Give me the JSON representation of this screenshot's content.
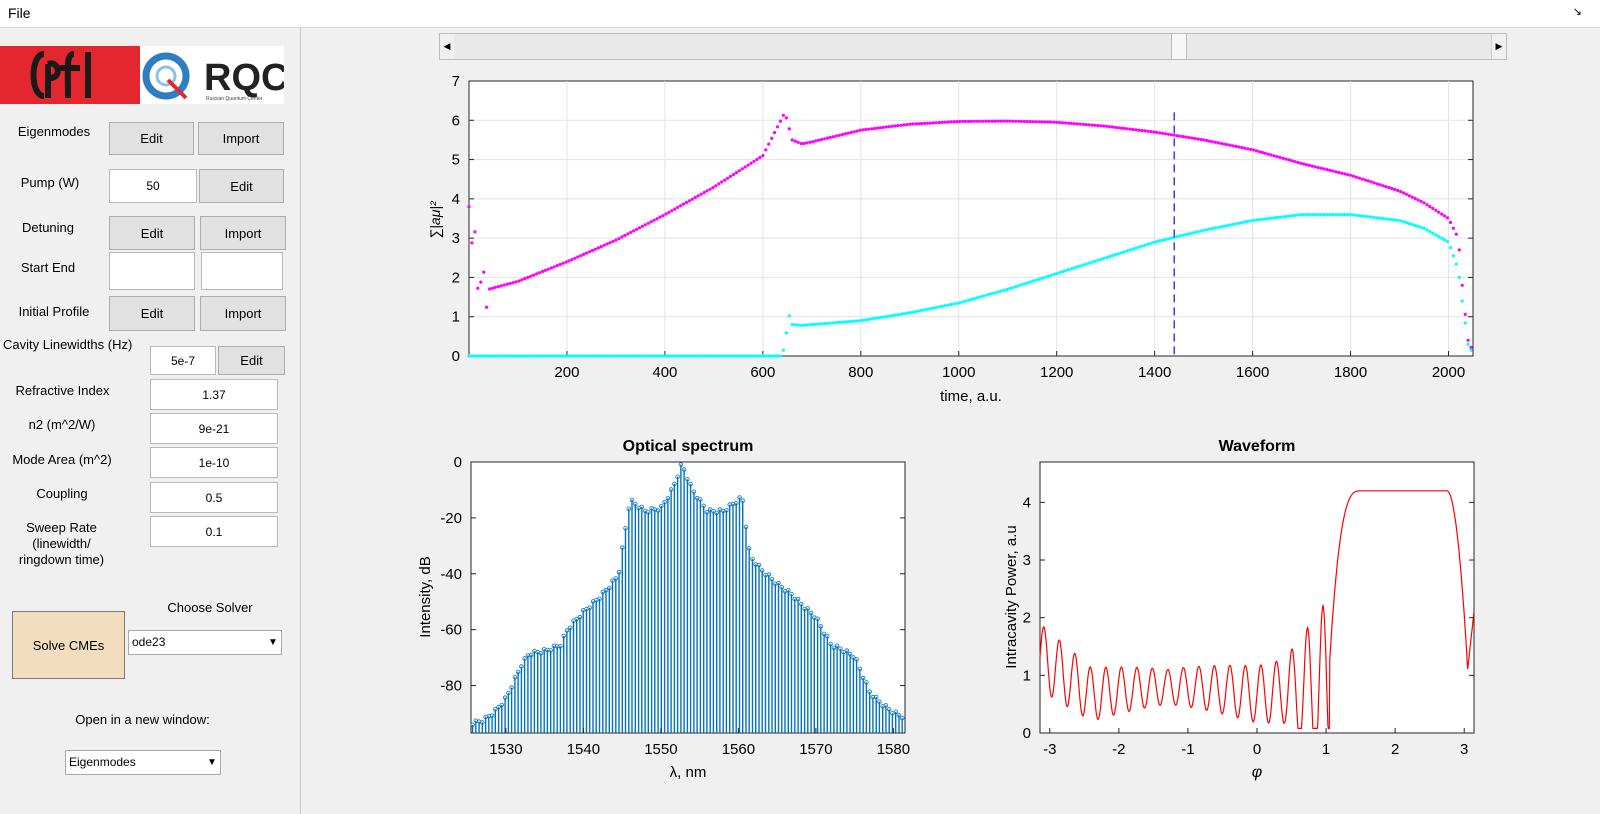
{
  "menu": {
    "file_label": "File",
    "corner_icon": "resize-arrow-icon"
  },
  "logos": {
    "epfl_text": "EPFL",
    "rqc_text": "RQC",
    "rqc_subtitle": "Russian Quantum Center"
  },
  "panel": {
    "eigenmodes_label": "Eigenmodes",
    "pump_label": "Pump (W)",
    "pump_value": "50",
    "detuning_label": "Detuning",
    "start_end_label": "Start End",
    "start_value": "",
    "end_value": "",
    "initial_profile_label": "Initial Profile",
    "cavity_label": "Cavity Linewidths (Hz)",
    "cavity_value": "5e-7",
    "refractive_label": "Refractive Index",
    "refractive_value": "1.37",
    "n2_label": "n2 (m^2/W)",
    "n2_value": "9e-21",
    "mode_area_label": "Mode Area (m^2)",
    "mode_area_value": "1e-10",
    "coupling_label": "Coupling",
    "coupling_value": "0.5",
    "sweep_label_1": "Sweep Rate",
    "sweep_label_2": "(linewidth/",
    "sweep_label_3": "ringdown time)",
    "sweep_value": "0.1",
    "edit_label": "Edit",
    "import_label": "Import",
    "choose_solver_label": "Choose Solver",
    "solver_value": "ode23",
    "solve_label": "Solve CMEs",
    "open_new_label": "Open in a new window:",
    "window_value": "Eigenmodes"
  },
  "slider": {
    "position": 0.7
  },
  "chart_data": [
    {
      "type": "scatter",
      "title": "",
      "xlabel": "time, a.u.",
      "ylabel": "∑|aμ|²",
      "xlim": [
        0,
        2050
      ],
      "ylim": [
        0,
        7
      ],
      "xticks": [
        200,
        400,
        600,
        800,
        1000,
        1200,
        1400,
        1600,
        1800,
        2000
      ],
      "yticks": [
        0,
        1,
        2,
        3,
        4,
        5,
        6,
        7
      ],
      "grid": true,
      "marker_line_x": 1440,
      "series": [
        {
          "color": "#ff00ff",
          "x": [
            0,
            20,
            40,
            100,
            200,
            300,
            400,
            500,
            600,
            645,
            660,
            680,
            700,
            750,
            800,
            900,
            1000,
            1100,
            1200,
            1300,
            1400,
            1500,
            1600,
            1700,
            1800,
            1900,
            1950,
            2000,
            2020,
            2030,
            2040,
            2050
          ],
          "y": [
            3.8,
            1.9,
            1.7,
            1.9,
            2.4,
            2.95,
            3.6,
            4.3,
            5.1,
            6.2,
            5.5,
            5.4,
            5.45,
            5.6,
            5.75,
            5.9,
            5.97,
            5.98,
            5.95,
            5.85,
            5.7,
            5.5,
            5.25,
            4.9,
            4.6,
            4.2,
            3.9,
            3.5,
            3.0,
            1.5,
            0.4,
            0.1
          ]
        },
        {
          "color": "#00ffff",
          "x": [
            0,
            100,
            200,
            300,
            400,
            500,
            600,
            640,
            655,
            660,
            680,
            700,
            800,
            900,
            1000,
            1100,
            1200,
            1300,
            1400,
            1500,
            1600,
            1700,
            1800,
            1900,
            1950,
            2000,
            2020,
            2030,
            2040,
            2050
          ],
          "y": [
            0,
            0,
            0,
            0,
            0,
            0,
            0,
            0,
            1.1,
            0.8,
            0.78,
            0.8,
            0.9,
            1.1,
            1.35,
            1.7,
            2.1,
            2.5,
            2.9,
            3.2,
            3.45,
            3.6,
            3.6,
            3.45,
            3.25,
            2.9,
            2.2,
            1.2,
            0.3,
            0.05
          ]
        }
      ]
    },
    {
      "type": "bar",
      "title": "Optical spectrum",
      "xlabel": "λ, nm",
      "ylabel": "Intensity, dB",
      "xlim": [
        1525.5,
        1581.5
      ],
      "ylim": [
        -97,
        0
      ],
      "xticks": [
        1530,
        1540,
        1550,
        1560,
        1570,
        1580
      ],
      "yticks": [
        0,
        -20,
        -40,
        -60,
        -80
      ],
      "color": "#0072bd",
      "envelope": {
        "x": [
          1525.5,
          1527,
          1528.5,
          1530,
          1532,
          1533,
          1535,
          1537,
          1538,
          1540,
          1542,
          1543,
          1544.5,
          1546,
          1548,
          1550,
          1551.5,
          1552.7,
          1554,
          1556,
          1558,
          1560.5,
          1561.5,
          1563,
          1565,
          1567,
          1568,
          1570,
          1572,
          1573,
          1575,
          1577,
          1578.5,
          1580,
          1581.5
        ],
        "y": [
          -93,
          -92,
          -89,
          -84,
          -72,
          -68,
          -67,
          -65,
          -59,
          -53,
          -48,
          -45,
          -40,
          -13,
          -17,
          -16,
          -9,
          0,
          -9,
          -17,
          -17,
          -12,
          -33,
          -38,
          -43,
          -47,
          -50,
          -55,
          -65,
          -66,
          -69,
          -82,
          -86,
          -89,
          -91
        ]
      }
    },
    {
      "type": "line",
      "title": "Waveform",
      "xlabel": "φ",
      "ylabel": "Intracavity Power, a.u",
      "xlim": [
        -3.1416,
        3.1416
      ],
      "ylim": [
        0,
        4.7
      ],
      "xticks": [
        -3,
        -2,
        -1,
        0,
        1,
        2,
        3
      ],
      "yticks": [
        0,
        1,
        2,
        3,
        4
      ],
      "color": "#ff0000"
    }
  ]
}
